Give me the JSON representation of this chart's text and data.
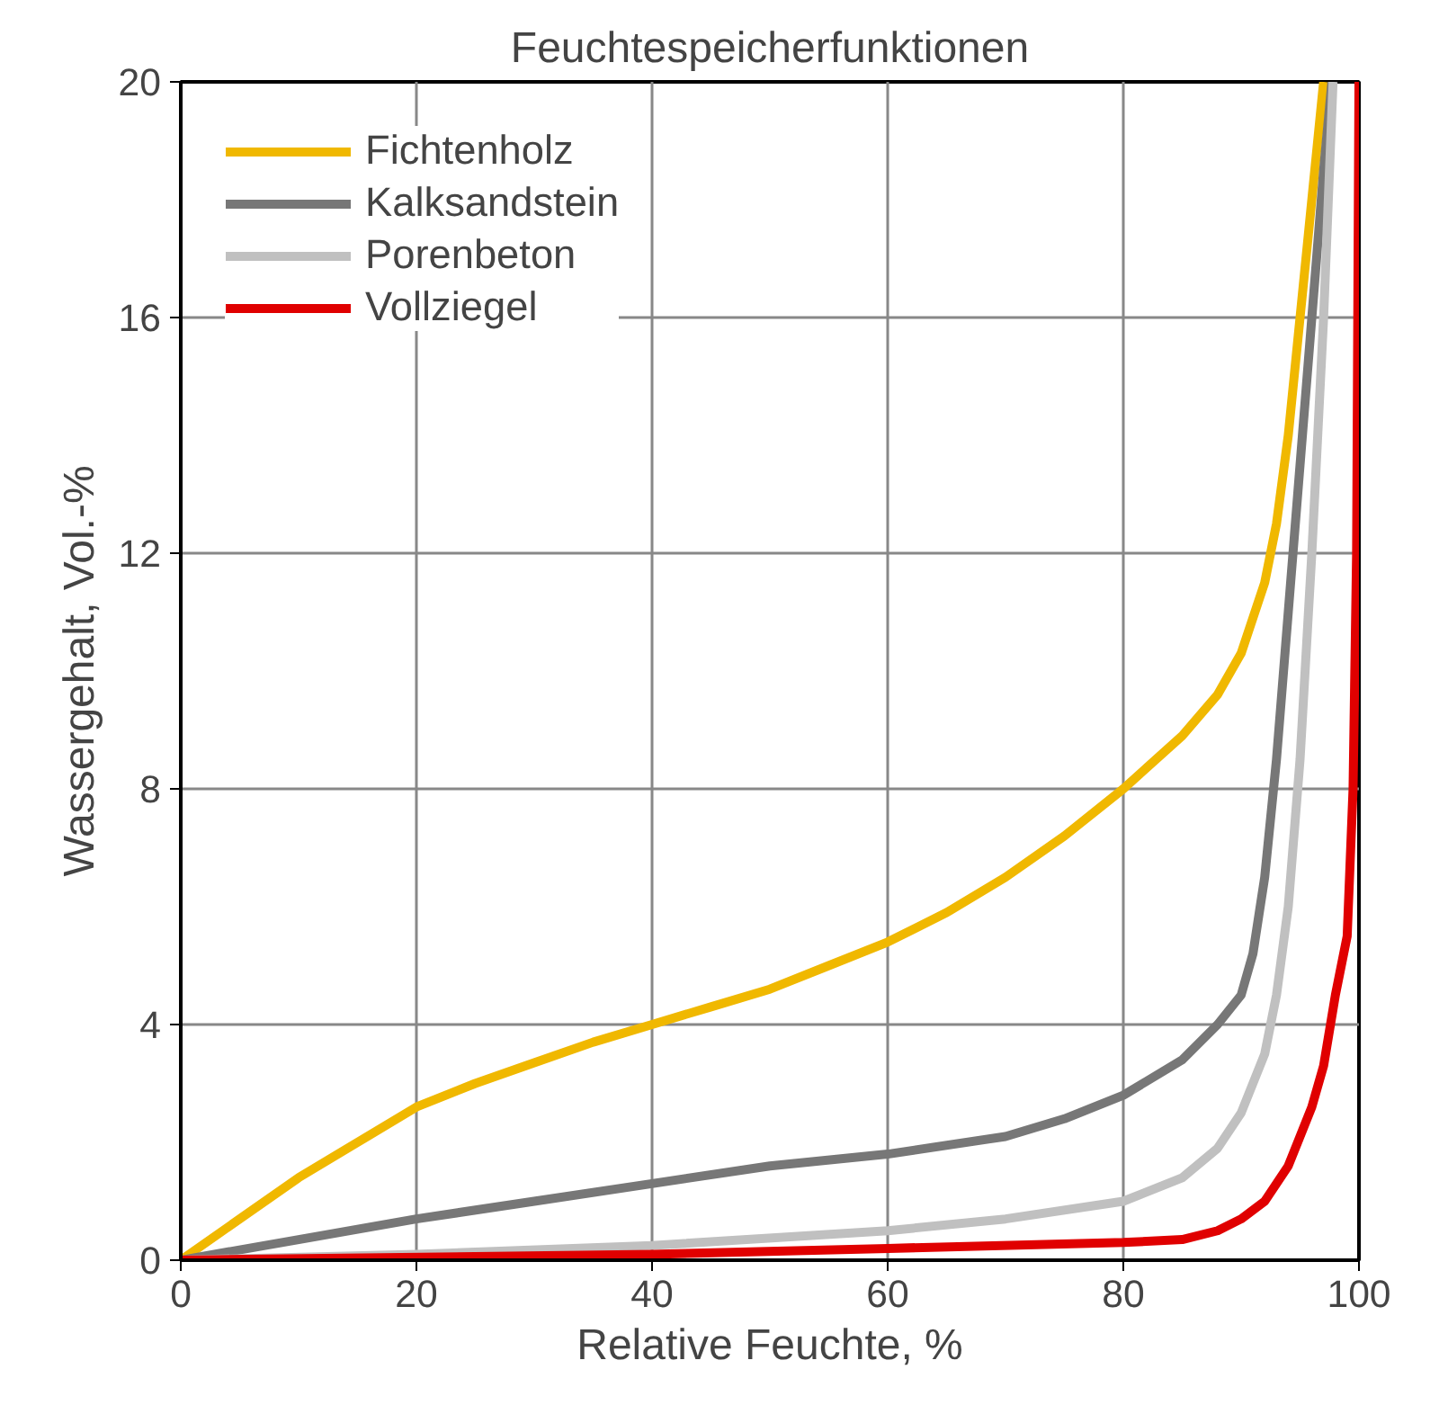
{
  "chart_data": {
    "type": "line",
    "title": "Feuchtespeicherfunktionen",
    "xlabel": "Relative Feuchte, %",
    "ylabel": "Wassergehalt, Vol.-%",
    "xlim": [
      0,
      100
    ],
    "ylim": [
      0,
      20
    ],
    "xticks": [
      0,
      20,
      40,
      60,
      80,
      100
    ],
    "yticks": [
      0,
      4,
      8,
      12,
      16,
      20
    ],
    "grid": true,
    "legend": "top left",
    "marker": "none",
    "line_style": "solid",
    "series": [
      {
        "name": "Fichtenholz",
        "color": "#f0b800",
        "x": [
          0,
          5,
          10,
          15,
          20,
          25,
          30,
          35,
          40,
          45,
          50,
          55,
          60,
          65,
          70,
          75,
          80,
          85,
          88,
          90,
          92,
          93,
          94,
          95,
          96,
          97
        ],
        "values": [
          0,
          0.7,
          1.4,
          2.0,
          2.6,
          3.0,
          3.35,
          3.7,
          4.0,
          4.3,
          4.6,
          5.0,
          5.4,
          5.9,
          6.5,
          7.2,
          8.0,
          8.9,
          9.6,
          10.3,
          11.5,
          12.5,
          14,
          16,
          18,
          20
        ]
      },
      {
        "name": "Kalksandstein",
        "color": "#777777",
        "x": [
          0,
          10,
          20,
          30,
          40,
          50,
          60,
          70,
          75,
          80,
          85,
          88,
          90,
          91,
          92,
          93,
          94,
          95,
          96,
          97,
          97.7
        ],
        "values": [
          0,
          0.35,
          0.7,
          1.0,
          1.3,
          1.6,
          1.8,
          2.1,
          2.4,
          2.8,
          3.4,
          4.0,
          4.5,
          5.2,
          6.5,
          8.5,
          11,
          13.5,
          16,
          18.5,
          20
        ]
      },
      {
        "name": "Porenbeton",
        "color": "#c0c0c0",
        "x": [
          0,
          20,
          40,
          60,
          70,
          80,
          85,
          88,
          90,
          92,
          93,
          94,
          95,
          96,
          97,
          97.8
        ],
        "values": [
          0,
          0.1,
          0.25,
          0.5,
          0.7,
          1.0,
          1.4,
          1.9,
          2.5,
          3.5,
          4.5,
          6,
          8.5,
          12,
          16,
          20
        ]
      },
      {
        "name": "Vollziegel",
        "color": "#e00000",
        "x": [
          0,
          40,
          60,
          80,
          85,
          88,
          90,
          92,
          94,
          96,
          97,
          98,
          99,
          99.5,
          99.8,
          100
        ],
        "values": [
          0,
          0.1,
          0.2,
          0.3,
          0.35,
          0.5,
          0.7,
          1.0,
          1.6,
          2.6,
          3.3,
          4.5,
          5.5,
          8,
          12,
          20
        ]
      }
    ]
  }
}
